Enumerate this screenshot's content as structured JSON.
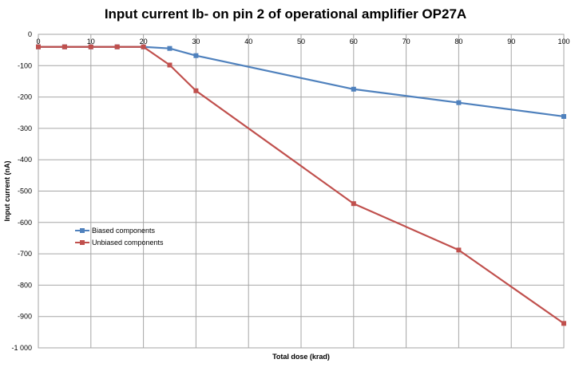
{
  "chart_data": {
    "type": "line",
    "title": "Input current Ib- on pin 2 of operational amplifier OP27A",
    "xlabel": "Total dose (krad)",
    "ylabel": "Input current (nA)",
    "xlim": [
      0,
      100
    ],
    "ylim": [
      -1000,
      0
    ],
    "x_ticks": [
      0,
      10,
      20,
      30,
      40,
      50,
      60,
      70,
      80,
      90,
      100
    ],
    "y_ticks": [
      0,
      -100,
      -200,
      -300,
      -400,
      -500,
      -600,
      -700,
      -800,
      -900,
      -1000
    ],
    "y_tick_labels": [
      "0",
      "-100",
      "-200",
      "-300",
      "-400",
      "-500",
      "-600",
      "-700",
      "-800",
      "-900",
      "-1 000"
    ],
    "grid": true,
    "legend_position": "left",
    "series": [
      {
        "name": "Biased components",
        "color": "#4f81bd",
        "marker": "square",
        "x": [
          0,
          5,
          10,
          15,
          20,
          25,
          30,
          60,
          80,
          100
        ],
        "y": [
          -40,
          -40,
          -40,
          -40,
          -40,
          -45,
          -68,
          -175,
          -218,
          -262
        ]
      },
      {
        "name": "Unbiased components",
        "color": "#c0504d",
        "marker": "square",
        "x": [
          0,
          5,
          10,
          15,
          20,
          25,
          30,
          60,
          80,
          100
        ],
        "y": [
          -40,
          -40,
          -40,
          -40,
          -40,
          -98,
          -180,
          -540,
          -688,
          -922
        ]
      }
    ]
  }
}
